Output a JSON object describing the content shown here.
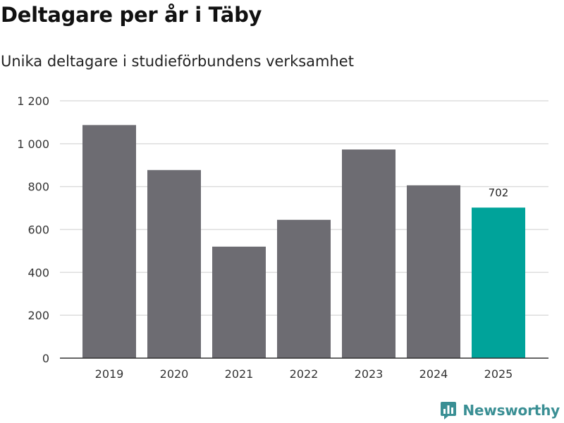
{
  "chart_data": {
    "type": "bar",
    "title": "Deltagare per år i Täby",
    "subtitle": "Unika deltagare i studieförbundens verksamhet",
    "xlabel": "",
    "ylabel": "",
    "categories": [
      "2019",
      "2020",
      "2021",
      "2022",
      "2023",
      "2024",
      "2025"
    ],
    "values": [
      1087,
      877,
      520,
      645,
      973,
      806,
      702
    ],
    "ylim": [
      0,
      1200
    ],
    "yticks": [
      0,
      200,
      400,
      600,
      800,
      1000,
      1200
    ],
    "ytick_labels": [
      "0",
      "200",
      "400",
      "600",
      "800",
      "1 000",
      "1 200"
    ],
    "grid": true,
    "highlight_index": 6,
    "data_labels": [
      {
        "index": 6,
        "text": "702"
      }
    ],
    "colors": {
      "bar": "#6d6c72",
      "highlight": "#00a39a",
      "grid": "#dddddd",
      "axis": "#333333"
    }
  },
  "brand": {
    "name": "Newsworthy",
    "icon": "newsworthy-logo-icon",
    "color": "#3a8f94"
  }
}
